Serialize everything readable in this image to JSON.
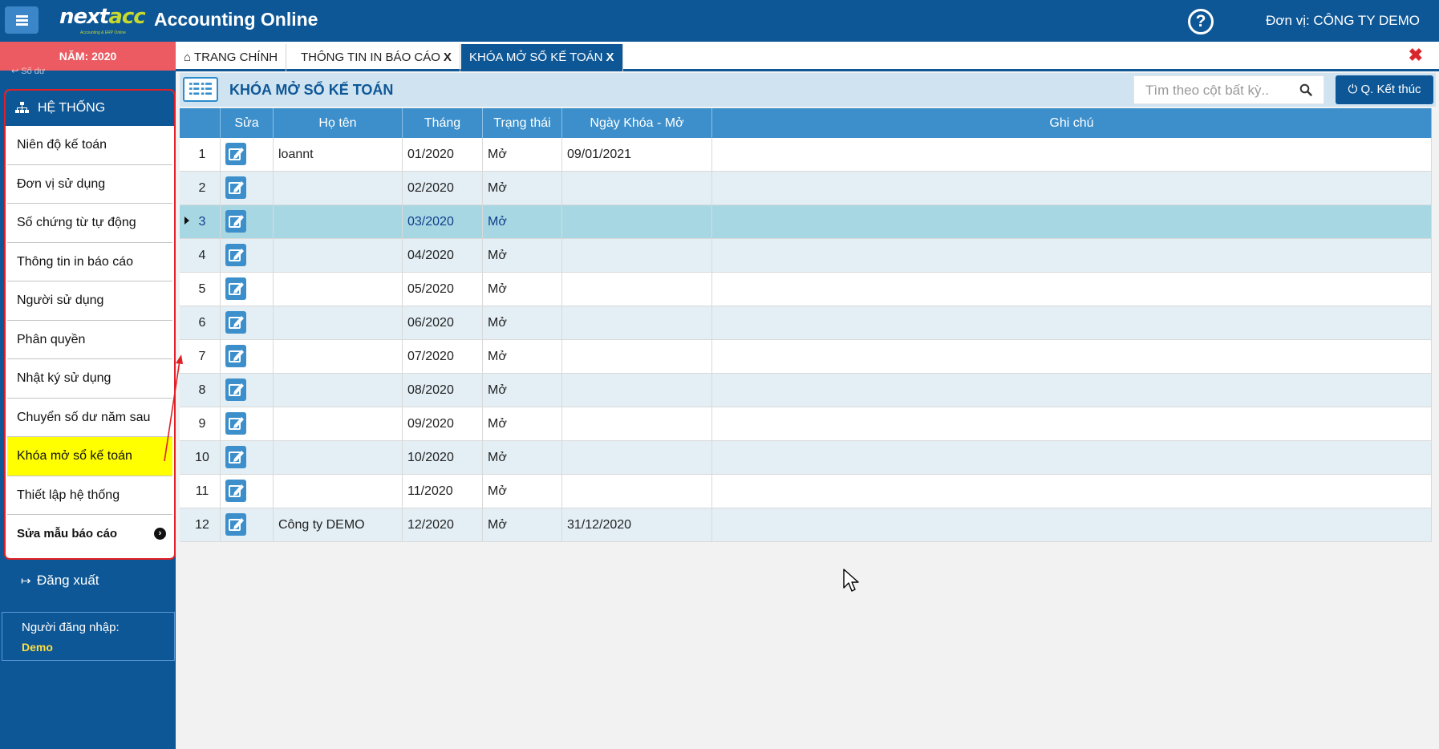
{
  "header": {
    "logo_prefix": "next",
    "logo_suffix": "acc",
    "logo_tagline": "Accounting & ERP Online",
    "app_title": "Accounting Online",
    "unit_label": "Đơn vị: CÔNG TY DEMO"
  },
  "sidebar": {
    "year_label": "NĂM: 2020",
    "peek_text": "↩ Số dư",
    "section_title": "HỆ THỐNG",
    "items": [
      {
        "label": "Niên độ kế toán"
      },
      {
        "label": "Đơn vị sử dụng"
      },
      {
        "label": "Số chứng từ tự động"
      },
      {
        "label": "Thông tin in báo cáo"
      },
      {
        "label": "Người sử dụng"
      },
      {
        "label": "Phân quyền"
      },
      {
        "label": "Nhật ký sử dụng"
      },
      {
        "label": "Chuyển số dư năm sau"
      },
      {
        "label": "Khóa mở sổ kế toán"
      },
      {
        "label": "Thiết lập hệ thống"
      },
      {
        "label": "Sửa mẫu báo cáo"
      }
    ],
    "logout_label": "Đăng xuất",
    "login_label": "Người đăng nhập:",
    "login_user": "Demo"
  },
  "tabs": [
    {
      "label": "TRANG CHÍNH",
      "close": ""
    },
    {
      "label": "THÔNG TIN IN BÁO CÁO",
      "close": "X"
    },
    {
      "label": "KHÓA MỞ SỔ KẾ TOÁN",
      "close": "X"
    }
  ],
  "content": {
    "title": "KHÓA MỞ SỔ KẾ TOÁN",
    "search_placeholder": "Tìm theo cột bất kỳ..",
    "end_button_label": "Q. Kết thúc"
  },
  "table": {
    "columns": {
      "no": "",
      "edit": "Sửa",
      "name": "Họ tên",
      "month": "Tháng",
      "status": "Trạng thái",
      "date": "Ngày Khóa - Mở",
      "note": "Ghi chú"
    },
    "rows": [
      {
        "no": "1",
        "name": "loannt",
        "month": "01/2020",
        "status": "Mở",
        "date": "09/01/2021",
        "note": ""
      },
      {
        "no": "2",
        "name": "",
        "month": "02/2020",
        "status": "Mở",
        "date": "",
        "note": ""
      },
      {
        "no": "3",
        "name": "",
        "month": "03/2020",
        "status": "Mở",
        "date": "",
        "note": ""
      },
      {
        "no": "4",
        "name": "",
        "month": "04/2020",
        "status": "Mở",
        "date": "",
        "note": ""
      },
      {
        "no": "5",
        "name": "",
        "month": "05/2020",
        "status": "Mở",
        "date": "",
        "note": ""
      },
      {
        "no": "6",
        "name": "",
        "month": "06/2020",
        "status": "Mở",
        "date": "",
        "note": ""
      },
      {
        "no": "7",
        "name": "",
        "month": "07/2020",
        "status": "Mở",
        "date": "",
        "note": ""
      },
      {
        "no": "8",
        "name": "",
        "month": "08/2020",
        "status": "Mở",
        "date": "",
        "note": ""
      },
      {
        "no": "9",
        "name": "",
        "month": "09/2020",
        "status": "Mở",
        "date": "",
        "note": ""
      },
      {
        "no": "10",
        "name": "",
        "month": "10/2020",
        "status": "Mở",
        "date": "",
        "note": ""
      },
      {
        "no": "11",
        "name": "",
        "month": "11/2020",
        "status": "Mở",
        "date": "",
        "note": ""
      },
      {
        "no": "12",
        "name": "Công ty DEMO",
        "month": "12/2020",
        "status": "Mở",
        "date": "31/12/2020",
        "note": ""
      }
    ],
    "selected_row": 3
  },
  "colors": {
    "brand_blue": "#0e5796",
    "grid_header": "#3c8fcb",
    "active_menu": "#ffff00",
    "annotation_red": "#e02026",
    "year_bar": "#ec5a62"
  }
}
